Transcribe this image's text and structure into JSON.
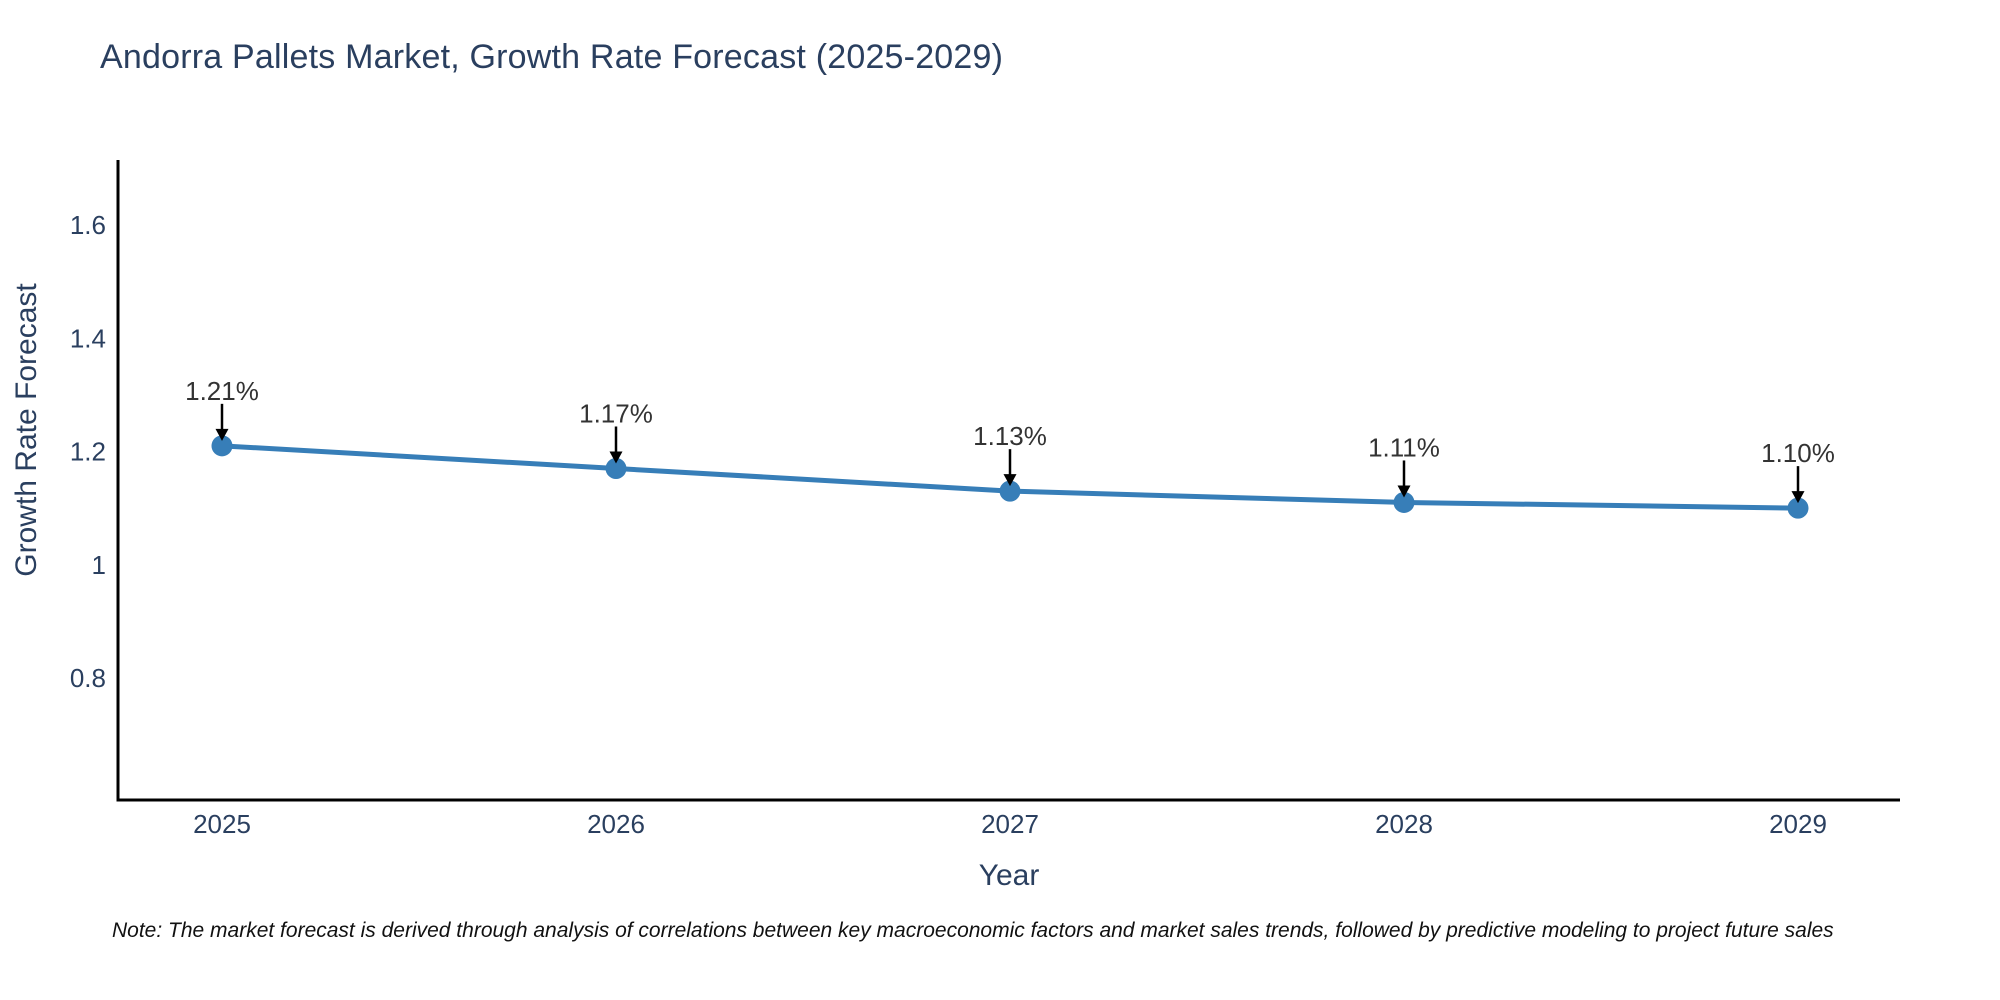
{
  "chart_data": {
    "type": "line",
    "title": "Andorra Pallets Market, Growth Rate Forecast (2025-2029)",
    "xlabel": "Year",
    "ylabel": "Growth Rate Forecast",
    "x": [
      2025,
      2026,
      2027,
      2028,
      2029
    ],
    "x_tick_labels": [
      "2025",
      "2026",
      "2027",
      "2028",
      "2029"
    ],
    "series": [
      {
        "name": "Growth Rate Forecast",
        "values": [
          1.21,
          1.17,
          1.13,
          1.11,
          1.1
        ],
        "point_labels": [
          "1.21%",
          "1.17%",
          "1.13%",
          "1.11%",
          "1.10%"
        ]
      }
    ],
    "y_ticks": [
      1.6,
      1.4,
      1.2,
      1,
      0.8
    ],
    "y_tick_labels": [
      "1.6",
      "1.4",
      "1.2",
      "1",
      "0.8"
    ],
    "ylim": [
      0.68,
      1.72
    ],
    "grid": false,
    "legend": false,
    "annotations_have_arrows": true,
    "colors": {
      "line": "#377eb8",
      "marker": "#377eb8",
      "axis_line": "#000000",
      "axis_text": "#2a3f5f",
      "annotation_text": "#333333",
      "annotation_arrow": "#000000"
    }
  },
  "note": {
    "text": "Note: The market forecast is derived through analysis of correlations between key macroeconomic factors and market sales trends, followed by predictive modeling to project future sales"
  }
}
